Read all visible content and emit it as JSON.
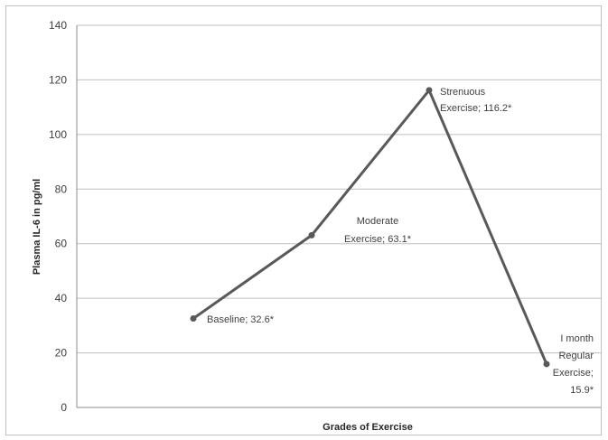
{
  "chart_data": {
    "type": "line",
    "xlabel": "Grades of Exercise",
    "ylabel": "Plasma IL-6 in pg/ml",
    "ylim": [
      0,
      140
    ],
    "yticks": [
      0,
      20,
      40,
      60,
      80,
      100,
      120,
      140
    ],
    "grid": true,
    "legend": "none",
    "series": [
      {
        "color": "#595959",
        "points": [
          {
            "category": "Baseline",
            "value": 32.6,
            "label": [
              "Baseline; 32.6*"
            ]
          },
          {
            "category": "Moderate Exercise",
            "value": 63.1,
            "label": [
              "Moderate",
              "Exercise; 63.1*"
            ]
          },
          {
            "category": "Strenuous Exercise",
            "value": 116.2,
            "label": [
              "Strenuous",
              "Exercise; 116.2*"
            ]
          },
          {
            "category": "I month Regular Exercise",
            "value": 15.9,
            "label": [
              "I month",
              "Regular",
              "Exercise;",
              "15.9*"
            ]
          }
        ]
      }
    ]
  }
}
